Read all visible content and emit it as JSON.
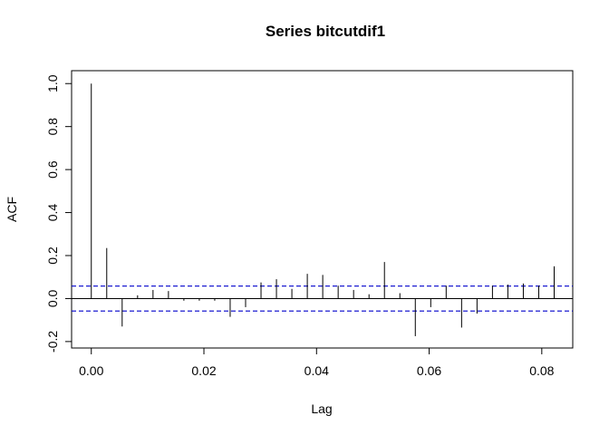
{
  "chart_data": {
    "type": "bar",
    "subtype": "acf",
    "title": "Series  bitcutdif1",
    "xlabel": "Lag",
    "ylabel": "ACF",
    "xlim": [
      -0.0035,
      0.0855
    ],
    "ylim": [
      -0.23,
      1.06
    ],
    "x_ticks": [
      0.0,
      0.02,
      0.04,
      0.06,
      0.08
    ],
    "x_tick_labels": [
      "0.00",
      "0.02",
      "0.04",
      "0.06",
      "0.08"
    ],
    "y_ticks": [
      -0.2,
      0.0,
      0.2,
      0.4,
      0.6,
      0.8,
      1.0
    ],
    "y_tick_labels": [
      "-0.2",
      "0.0",
      "0.2",
      "0.4",
      "0.6",
      "0.8",
      "1.0"
    ],
    "confidence_bound": 0.058,
    "lag_step": 0.00274,
    "values": [
      1.0,
      0.235,
      -0.13,
      0.015,
      0.04,
      0.035,
      -0.01,
      -0.01,
      -0.01,
      -0.085,
      -0.04,
      0.075,
      0.09,
      0.045,
      0.115,
      0.11,
      0.06,
      0.04,
      0.02,
      0.17,
      0.025,
      -0.175,
      -0.04,
      0.06,
      -0.135,
      -0.07,
      0.06,
      0.065,
      0.07,
      0.06,
      0.15
    ],
    "colors": {
      "bars": "#000000",
      "zero_line": "#000000",
      "ci_line": "#0000cc",
      "frame": "#000000"
    },
    "grid": false
  }
}
